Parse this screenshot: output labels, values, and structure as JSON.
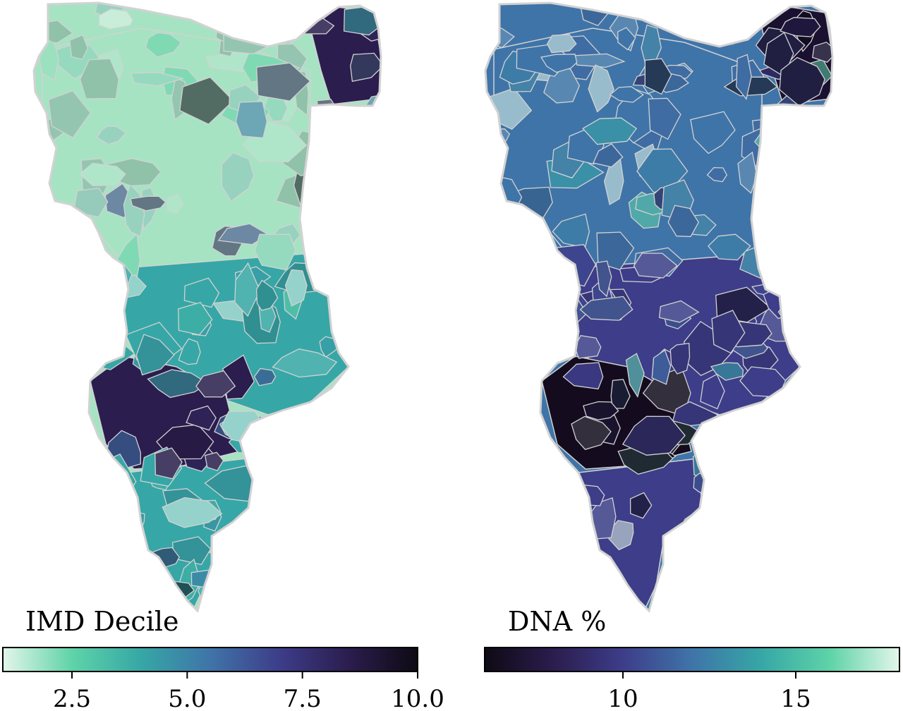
{
  "figure": {
    "panels": [
      {
        "id": "imd",
        "title": "IMD Decile",
        "colorbar": {
          "min": 1.0,
          "max": 10.0,
          "ticks": [
            2.5,
            5.0,
            7.5,
            10.0
          ],
          "tick_labels": [
            "2.5",
            "5.0",
            "7.5",
            "10.0"
          ],
          "direction": "light-to-dark",
          "colors": [
            "#e3f6ea",
            "#5fd3a8",
            "#36a7a6",
            "#3f74a8",
            "#3d3d89",
            "#2b1d4e",
            "#0e0a14"
          ]
        },
        "dominant_fill_by_zone": {
          "north_east_corner": "#2b1d4e",
          "central_north": "#a6e3c3",
          "central_south": "#36a7a6",
          "south_west_block": "#2b1d4e",
          "southern_tail": "#36a7a6"
        }
      },
      {
        "id": "dna",
        "title": "DNA %",
        "colorbar": {
          "min": 6.0,
          "max": 18.0,
          "ticks": [
            10,
            15
          ],
          "tick_labels": [
            "10",
            "15"
          ],
          "direction": "dark-to-light",
          "colors": [
            "#0e0a14",
            "#2b1d4e",
            "#3d3d89",
            "#3f74a8",
            "#36a7a6",
            "#5fd3a8",
            "#e3f6ea"
          ]
        },
        "dominant_fill_by_zone": {
          "north_east_corner": "#1a1030",
          "central_north": "#3f74a8",
          "central_south": "#3d3d89",
          "south_west_block": "#140c1e",
          "southern_tail": "#3d3d89"
        }
      }
    ],
    "boundary_color": "#d2d2d2"
  }
}
